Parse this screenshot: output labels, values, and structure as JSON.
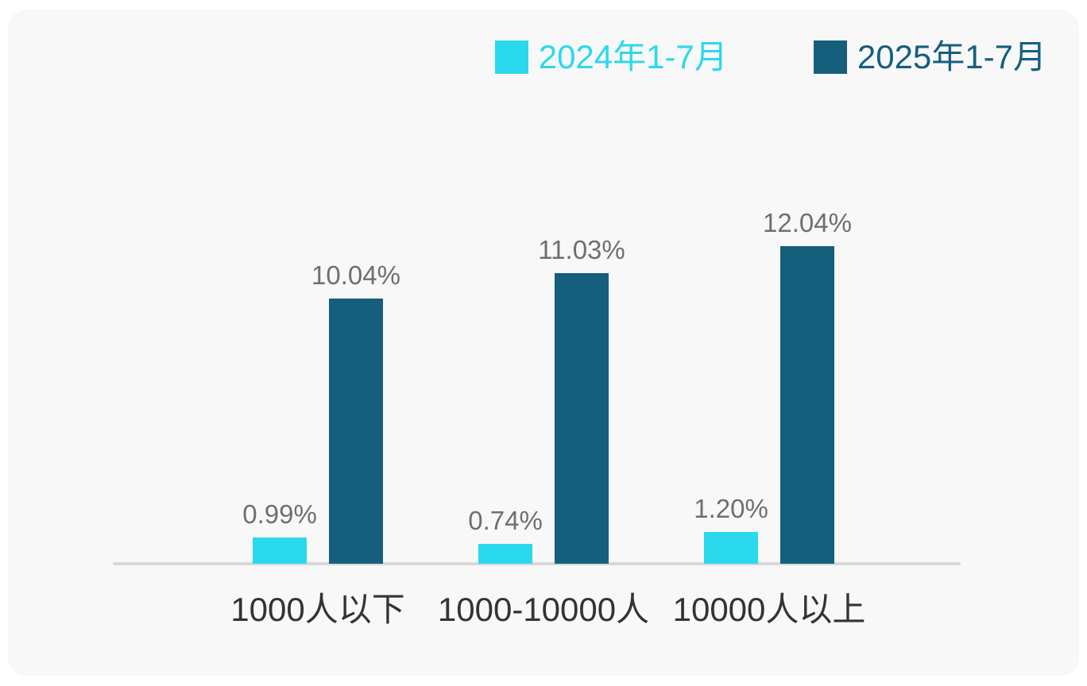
{
  "page": {
    "background_color": "#ffffff",
    "card_background_color": "#f8f8f9"
  },
  "legend": {
    "items": [
      {
        "label": "2024年1-7月",
        "color": "#2bd9ec"
      },
      {
        "label": "2025年1-7月",
        "color": "#155f7d"
      }
    ]
  },
  "chart_data": {
    "type": "bar",
    "title": "",
    "xlabel": "",
    "ylabel": "",
    "categories": [
      "1000人以下",
      "1000-10000人",
      "10000人以上"
    ],
    "series": [
      {
        "name": "2024年1-7月",
        "color": "#2bd9ec",
        "values": [
          0.99,
          0.74,
          1.2
        ],
        "labels": [
          "0.99%",
          "0.74%",
          "1.20%"
        ]
      },
      {
        "name": "2025年1-7月",
        "color": "#155f7d",
        "values": [
          10.04,
          11.03,
          12.04
        ],
        "labels": [
          "10.04%",
          "11.03%",
          "12.04%"
        ]
      }
    ],
    "ylim": [
      0,
      12.04
    ],
    "grid": false,
    "y_axis_visible": false,
    "x_axis_line_visible": true,
    "legend_position": "top-right",
    "value_label_color": "#6f6f6f",
    "category_label_color": "#333333",
    "axis_line_color": "#d8d8d8"
  }
}
